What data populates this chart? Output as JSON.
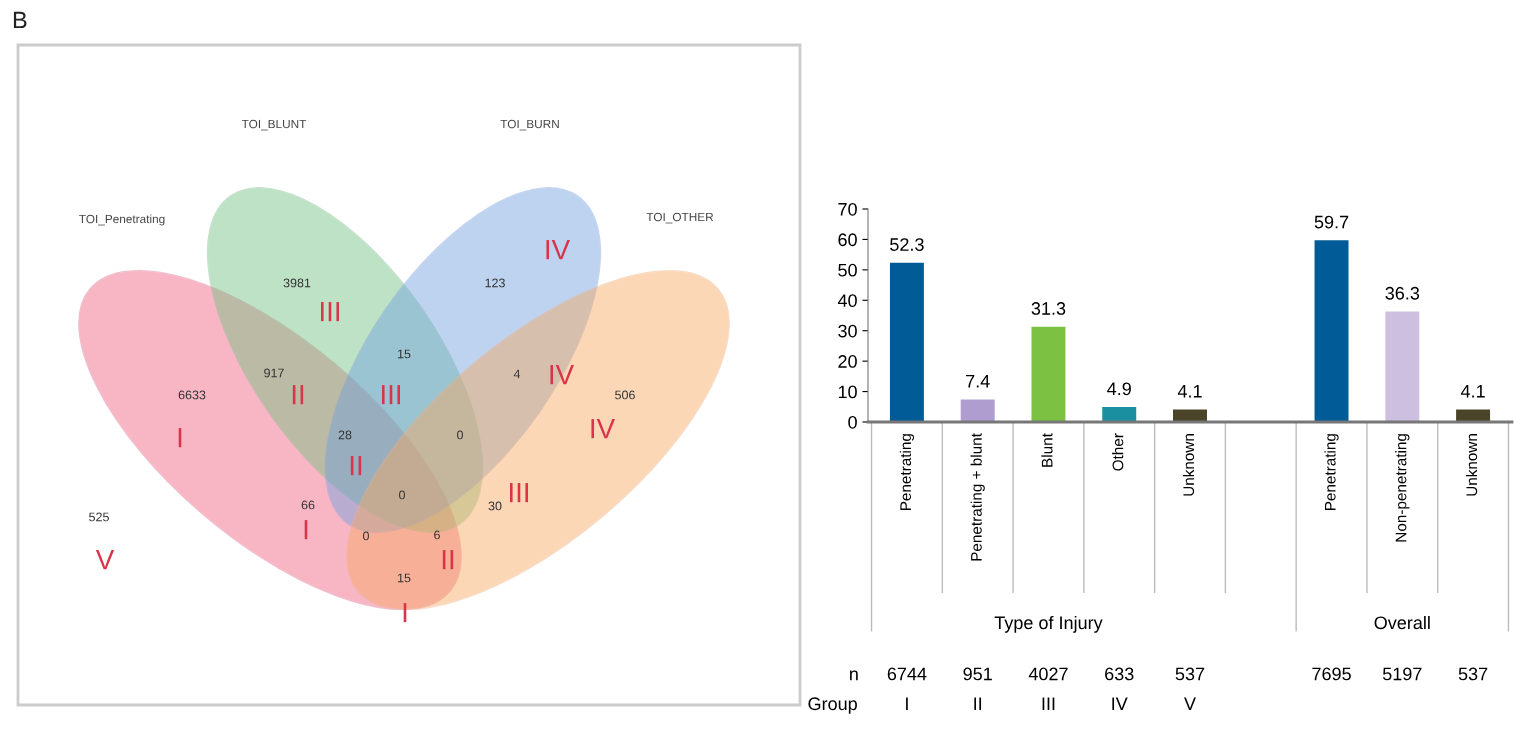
{
  "chart_data": [
    {
      "type": "other",
      "annotations": [
        "B",
        "TOI_BLUNT",
        "TOI_BURN",
        "TOI_Penetrating",
        "TOI_OTHER",
        "3981",
        "III",
        "123",
        "IV",
        "15",
        "III",
        "917",
        "II",
        "6633",
        "I",
        "4",
        "IV",
        "506",
        "IV",
        "28",
        "II",
        "0",
        "0",
        "III",
        "30",
        "66",
        "I",
        "0",
        "6",
        "II",
        "15",
        "I",
        "525",
        "V"
      ]
    },
    {
      "type": "bar",
      "categories": [
        "Penetrating",
        "Penetrating + blunt",
        "Blunt",
        "Other",
        "Unknown",
        null,
        "Penetrating",
        "Non-penetrating",
        "Unknown"
      ],
      "values": [
        52.3,
        7.4,
        31.3,
        4.9,
        4.1,
        null,
        59.7,
        36.3,
        4.1
      ],
      "colors": [
        "#005b96",
        "#b09dd0",
        "#7dc142",
        "#1a8fa0",
        "#4a4528",
        "#ffffff",
        "#005b96",
        "#cdbfdf",
        "#4a4528"
      ],
      "data_labels": true,
      "ylim": [
        0,
        70
      ],
      "yticks": [
        0,
        10,
        20,
        30,
        40,
        50,
        60,
        70
      ],
      "grid": false,
      "legend": false,
      "annotations": [
        "Type of Injury",
        "Overall",
        "n",
        "6744",
        "951",
        "4027",
        "633",
        "537",
        "7695",
        "5197",
        "537",
        "Group",
        "I",
        "II",
        "III",
        "IV",
        "V"
      ]
    }
  ]
}
